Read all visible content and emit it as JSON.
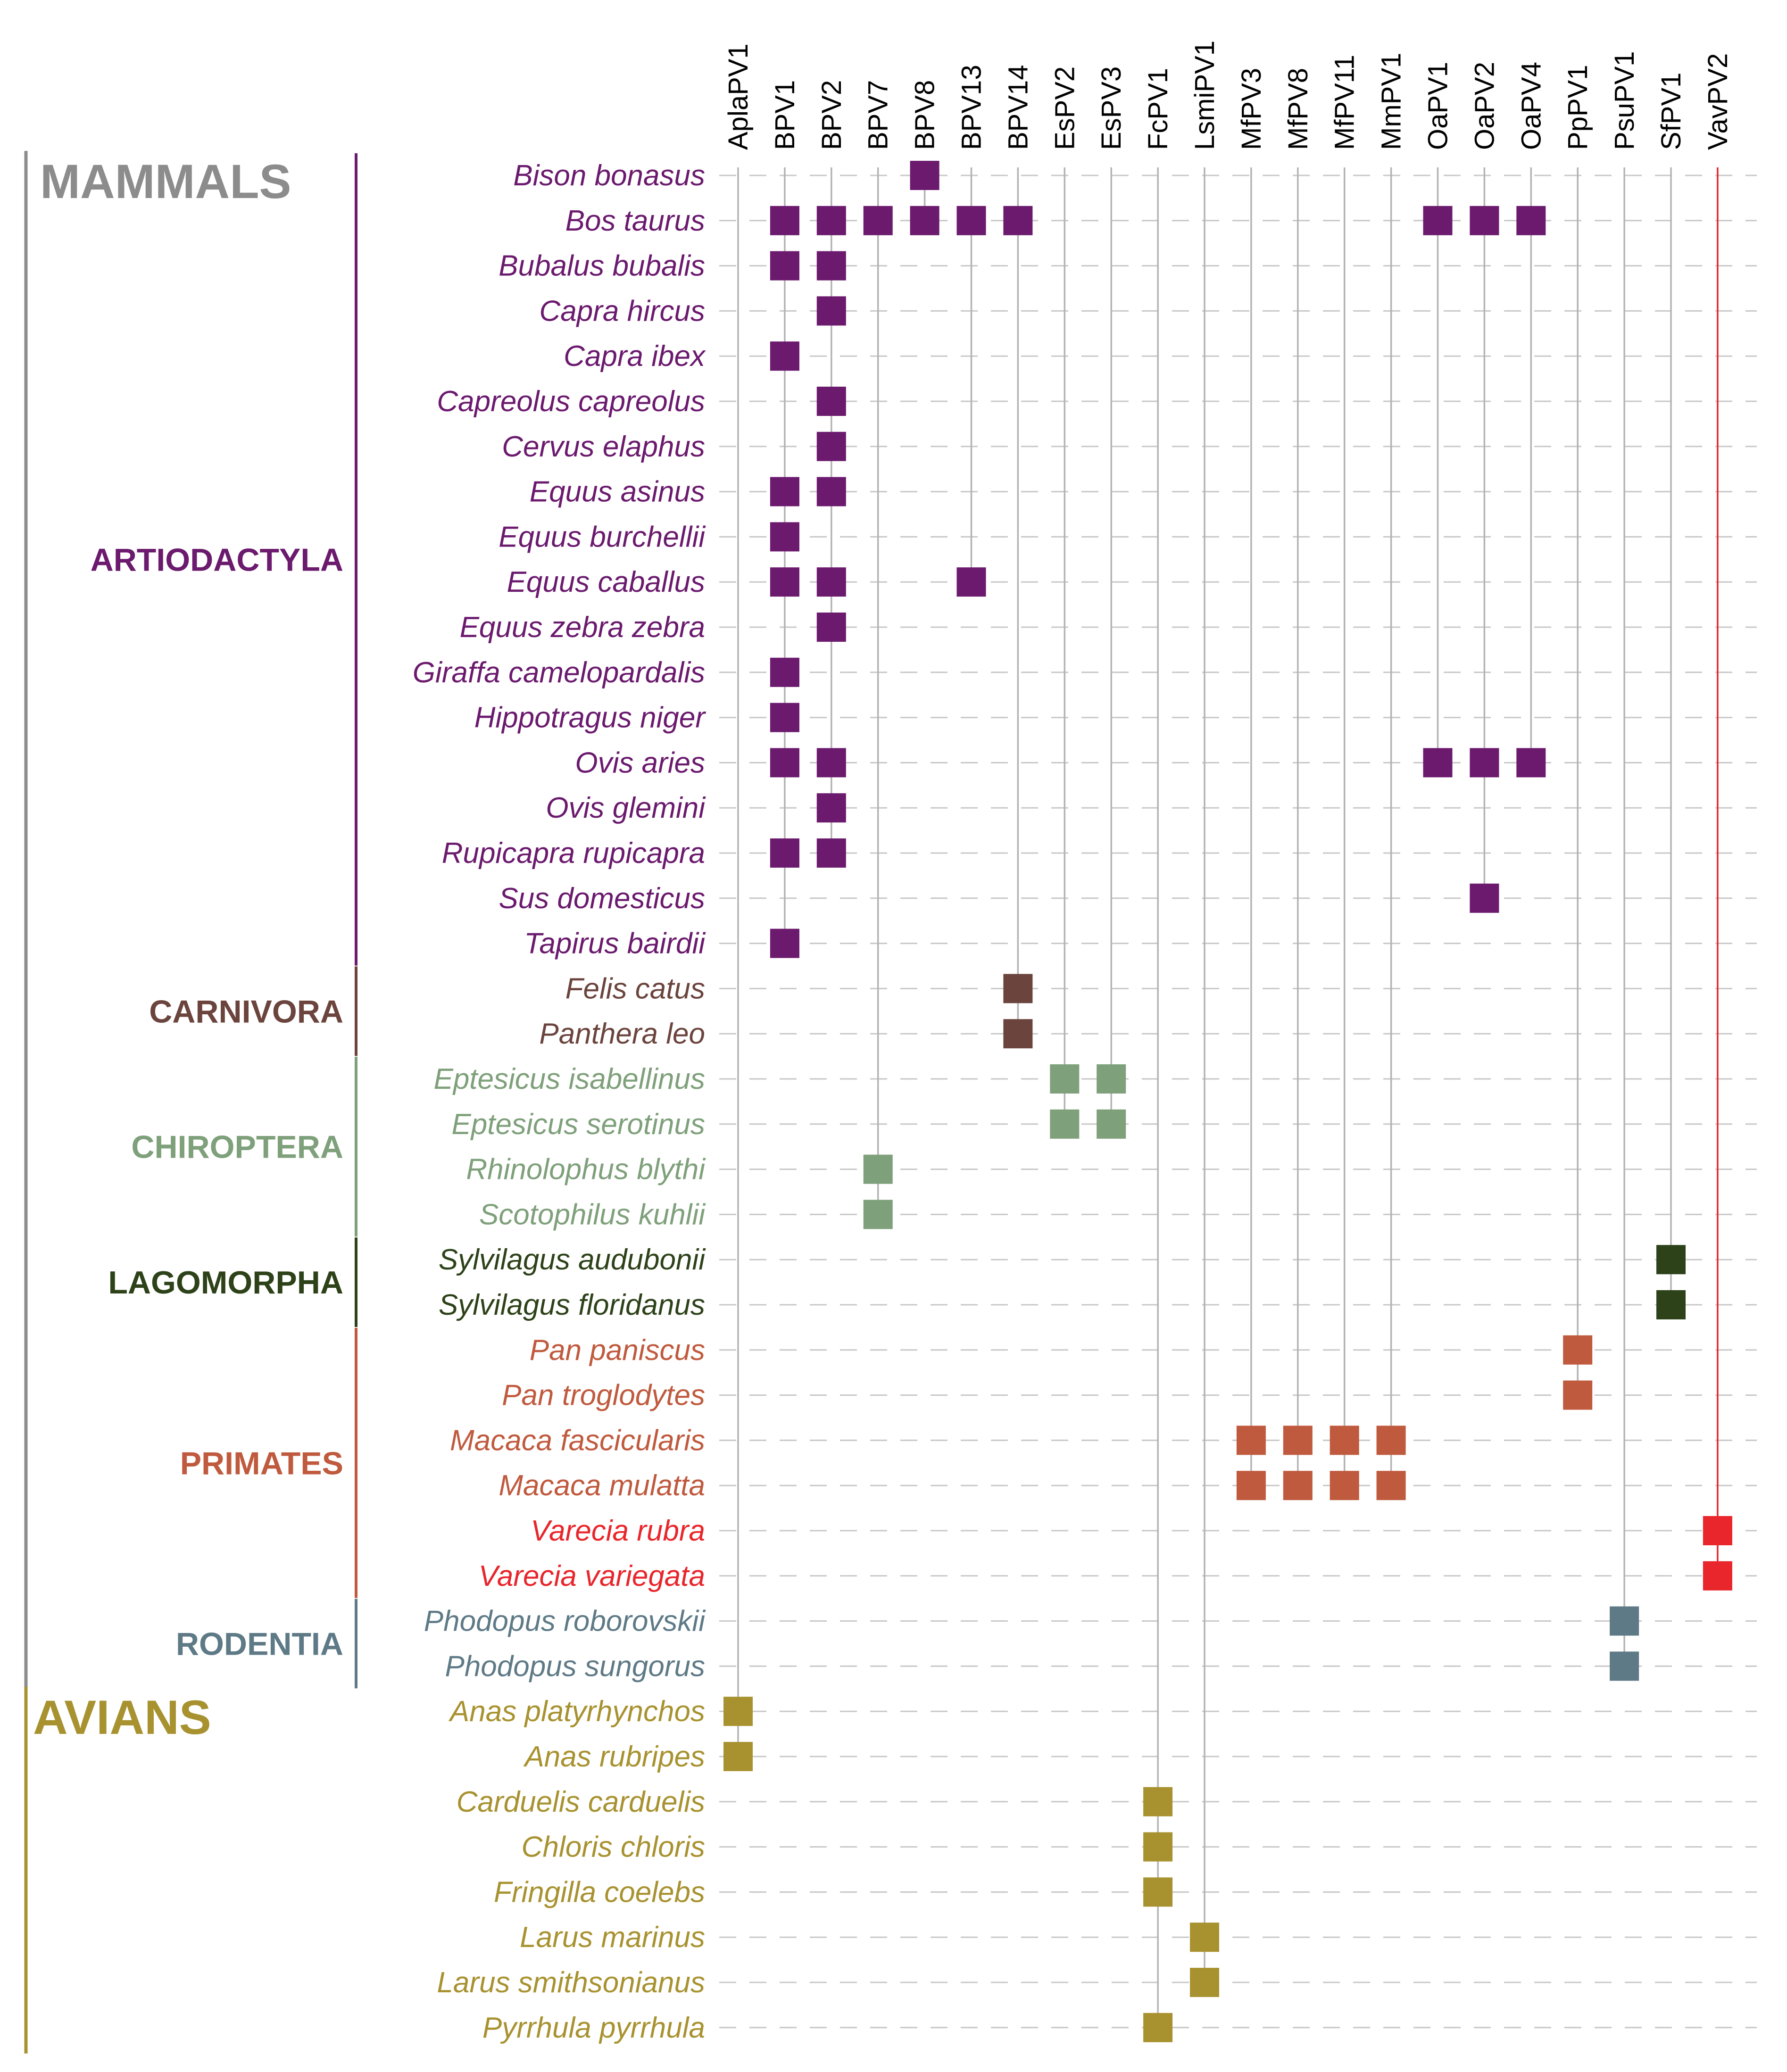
{
  "chart_data": {
    "type": "heatmap",
    "title": "",
    "xlabel": "",
    "ylabel": "",
    "viruses": [
      "AplaPV1",
      "BPV1",
      "BPV2",
      "BPV7",
      "BPV8",
      "BPV13",
      "BPV14",
      "EsPV2",
      "EsPV3",
      "FcPV1",
      "LsmiPV1",
      "MfPV3",
      "MfPV8",
      "MfPV11",
      "MmPV1",
      "OaPV1",
      "OaPV2",
      "OaPV4",
      "PpPV1",
      "PsuPV1",
      "SfPV1",
      "VavPV2"
    ],
    "classes": [
      {
        "name": "MAMMALS",
        "color": "#8c8c8c",
        "first": 0,
        "last": 33
      },
      {
        "name": "AVIANS",
        "color": "#a89230",
        "first": 34,
        "last": 41
      }
    ],
    "groups": [
      {
        "name": "ARTIODACTYLA",
        "color": "#6b1a6e",
        "first": 0,
        "last": 17
      },
      {
        "name": "CARNIVORA",
        "color": "#6b443d",
        "first": 18,
        "last": 19
      },
      {
        "name": "CHIROPTERA",
        "color": "#7ea07a",
        "first": 20,
        "last": 23
      },
      {
        "name": "LAGOMORPHA",
        "color": "#2d4219",
        "first": 24,
        "last": 25
      },
      {
        "name": "PRIMATES",
        "color": "#c05a3e",
        "first": 26,
        "last": 31
      },
      {
        "name": "RODENTIA",
        "color": "#5e7a86",
        "first": 32,
        "last": 33
      }
    ],
    "species": [
      {
        "name": "Bison bonasus",
        "color": "#6b1a6e"
      },
      {
        "name": "Bos taurus",
        "color": "#6b1a6e"
      },
      {
        "name": "Bubalus bubalis",
        "color": "#6b1a6e"
      },
      {
        "name": "Capra hircus",
        "color": "#6b1a6e"
      },
      {
        "name": "Capra ibex",
        "color": "#6b1a6e"
      },
      {
        "name": "Capreolus capreolus",
        "color": "#6b1a6e"
      },
      {
        "name": "Cervus elaphus",
        "color": "#6b1a6e"
      },
      {
        "name": "Equus asinus",
        "color": "#6b1a6e"
      },
      {
        "name": "Equus burchellii",
        "color": "#6b1a6e"
      },
      {
        "name": "Equus caballus",
        "color": "#6b1a6e"
      },
      {
        "name": "Equus zebra zebra",
        "color": "#6b1a6e"
      },
      {
        "name": "Giraffa camelopardalis",
        "color": "#6b1a6e"
      },
      {
        "name": "Hippotragus niger",
        "color": "#6b1a6e"
      },
      {
        "name": "Ovis aries",
        "color": "#6b1a6e"
      },
      {
        "name": "Ovis glemini",
        "color": "#6b1a6e"
      },
      {
        "name": "Rupicapra rupicapra",
        "color": "#6b1a6e"
      },
      {
        "name": "Sus domesticus",
        "color": "#6b1a6e"
      },
      {
        "name": "Tapirus bairdii",
        "color": "#6b1a6e"
      },
      {
        "name": "Felis catus",
        "color": "#6b443d"
      },
      {
        "name": "Panthera leo",
        "color": "#6b443d"
      },
      {
        "name": "Eptesicus isabellinus",
        "color": "#7ea07a"
      },
      {
        "name": "Eptesicus serotinus",
        "color": "#7ea07a"
      },
      {
        "name": "Rhinolophus blythi",
        "color": "#7ea07a"
      },
      {
        "name": "Scotophilus kuhlii",
        "color": "#7ea07a"
      },
      {
        "name": "Sylvilagus audubonii",
        "color": "#2d4219"
      },
      {
        "name": "Sylvilagus floridanus",
        "color": "#2d4219"
      },
      {
        "name": "Pan paniscus",
        "color": "#c05a3e"
      },
      {
        "name": "Pan troglodytes",
        "color": "#c05a3e"
      },
      {
        "name": "Macaca fascicularis",
        "color": "#c05a3e"
      },
      {
        "name": "Macaca mulatta",
        "color": "#c05a3e"
      },
      {
        "name": "Varecia rubra",
        "color": "#e8262c"
      },
      {
        "name": "Varecia variegata",
        "color": "#e8262c"
      },
      {
        "name": "Phodopus roborovskii",
        "color": "#5e7a86"
      },
      {
        "name": "Phodopus sungorus",
        "color": "#5e7a86"
      },
      {
        "name": "Anas platyrhynchos",
        "color": "#a89230"
      },
      {
        "name": "Anas rubripes",
        "color": "#a89230"
      },
      {
        "name": "Carduelis carduelis",
        "color": "#a89230"
      },
      {
        "name": "Chloris chloris",
        "color": "#a89230"
      },
      {
        "name": "Fringilla coelebs",
        "color": "#a89230"
      },
      {
        "name": "Larus marinus",
        "color": "#a89230"
      },
      {
        "name": "Larus smithsonianus",
        "color": "#a89230"
      },
      {
        "name": "Pyrrhula pyrrhula",
        "color": "#a89230"
      }
    ],
    "vertical_line_colors": {
      "default": "#b3b3b3",
      "VavPV2": "#e8262c"
    },
    "grid": "dashed horizontal guides",
    "detections": [
      [
        "Bison bonasus",
        "BPV8"
      ],
      [
        "Bos taurus",
        "BPV1"
      ],
      [
        "Bos taurus",
        "BPV2"
      ],
      [
        "Bos taurus",
        "BPV7"
      ],
      [
        "Bos taurus",
        "BPV8"
      ],
      [
        "Bos taurus",
        "BPV13"
      ],
      [
        "Bos taurus",
        "BPV14"
      ],
      [
        "Bos taurus",
        "OaPV1"
      ],
      [
        "Bos taurus",
        "OaPV2"
      ],
      [
        "Bos taurus",
        "OaPV4"
      ],
      [
        "Bubalus bubalis",
        "BPV1"
      ],
      [
        "Bubalus bubalis",
        "BPV2"
      ],
      [
        "Capra hircus",
        "BPV2"
      ],
      [
        "Capra ibex",
        "BPV1"
      ],
      [
        "Capreolus capreolus",
        "BPV2"
      ],
      [
        "Cervus elaphus",
        "BPV2"
      ],
      [
        "Equus asinus",
        "BPV1"
      ],
      [
        "Equus asinus",
        "BPV2"
      ],
      [
        "Equus burchellii",
        "BPV1"
      ],
      [
        "Equus caballus",
        "BPV1"
      ],
      [
        "Equus caballus",
        "BPV2"
      ],
      [
        "Equus caballus",
        "BPV13"
      ],
      [
        "Equus zebra zebra",
        "BPV2"
      ],
      [
        "Giraffa camelopardalis",
        "BPV1"
      ],
      [
        "Hippotragus niger",
        "BPV1"
      ],
      [
        "Ovis aries",
        "BPV1"
      ],
      [
        "Ovis aries",
        "BPV2"
      ],
      [
        "Ovis aries",
        "OaPV1"
      ],
      [
        "Ovis aries",
        "OaPV2"
      ],
      [
        "Ovis aries",
        "OaPV4"
      ],
      [
        "Ovis glemini",
        "BPV2"
      ],
      [
        "Rupicapra rupicapra",
        "BPV1"
      ],
      [
        "Rupicapra rupicapra",
        "BPV2"
      ],
      [
        "Sus domesticus",
        "OaPV2"
      ],
      [
        "Tapirus bairdii",
        "BPV1"
      ],
      [
        "Felis catus",
        "BPV14"
      ],
      [
        "Panthera leo",
        "BPV14"
      ],
      [
        "Eptesicus isabellinus",
        "EsPV2"
      ],
      [
        "Eptesicus isabellinus",
        "EsPV3"
      ],
      [
        "Eptesicus serotinus",
        "EsPV2"
      ],
      [
        "Eptesicus serotinus",
        "EsPV3"
      ],
      [
        "Rhinolophus blythi",
        "BPV7"
      ],
      [
        "Scotophilus kuhlii",
        "BPV7"
      ],
      [
        "Sylvilagus audubonii",
        "SfPV1"
      ],
      [
        "Sylvilagus floridanus",
        "SfPV1"
      ],
      [
        "Pan paniscus",
        "PpPV1"
      ],
      [
        "Pan troglodytes",
        "PpPV1"
      ],
      [
        "Macaca fascicularis",
        "MfPV3"
      ],
      [
        "Macaca fascicularis",
        "MfPV8"
      ],
      [
        "Macaca fascicularis",
        "MfPV11"
      ],
      [
        "Macaca fascicularis",
        "MmPV1"
      ],
      [
        "Macaca mulatta",
        "MfPV3"
      ],
      [
        "Macaca mulatta",
        "MfPV8"
      ],
      [
        "Macaca mulatta",
        "MfPV11"
      ],
      [
        "Macaca mulatta",
        "MmPV1"
      ],
      [
        "Varecia rubra",
        "VavPV2"
      ],
      [
        "Varecia variegata",
        "VavPV2"
      ],
      [
        "Phodopus roborovskii",
        "PsuPV1"
      ],
      [
        "Phodopus sungorus",
        "PsuPV1"
      ],
      [
        "Anas platyrhynchos",
        "AplaPV1"
      ],
      [
        "Anas rubripes",
        "AplaPV1"
      ],
      [
        "Carduelis carduelis",
        "FcPV1"
      ],
      [
        "Chloris chloris",
        "FcPV1"
      ],
      [
        "Fringilla coelebs",
        "FcPV1"
      ],
      [
        "Larus marinus",
        "LsmiPV1"
      ],
      [
        "Larus smithsonianus",
        "LsmiPV1"
      ],
      [
        "Pyrrhula pyrrhula",
        "FcPV1"
      ]
    ]
  }
}
